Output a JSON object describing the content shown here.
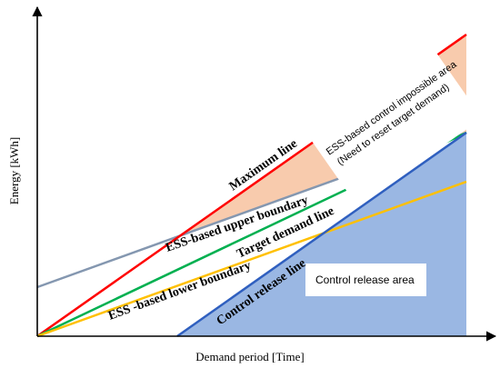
{
  "axes": {
    "y_label": "Energy  [kWh]",
    "x_label": "Demand period [Time]"
  },
  "lines": {
    "maximum": {
      "label": "Maximum line",
      "color": "#ff0000"
    },
    "ess_upper": {
      "label": "ESS-based upper boundary",
      "color": "#8497b0"
    },
    "target": {
      "label": "Target demand line",
      "color": "#00b050"
    },
    "ess_lower": {
      "label": "ESS -based lower boundary",
      "color": "#ffc000"
    },
    "control_release": {
      "label": "Control release line",
      "color": "#2f5fbf"
    }
  },
  "areas": {
    "impossible": {
      "label_line1": "ESS-based control impossible area",
      "label_line2": "(Need to reset target demand)",
      "color": "#f8cbad"
    },
    "release": {
      "label": "Control release area",
      "color": "#9ab7e3"
    }
  }
}
